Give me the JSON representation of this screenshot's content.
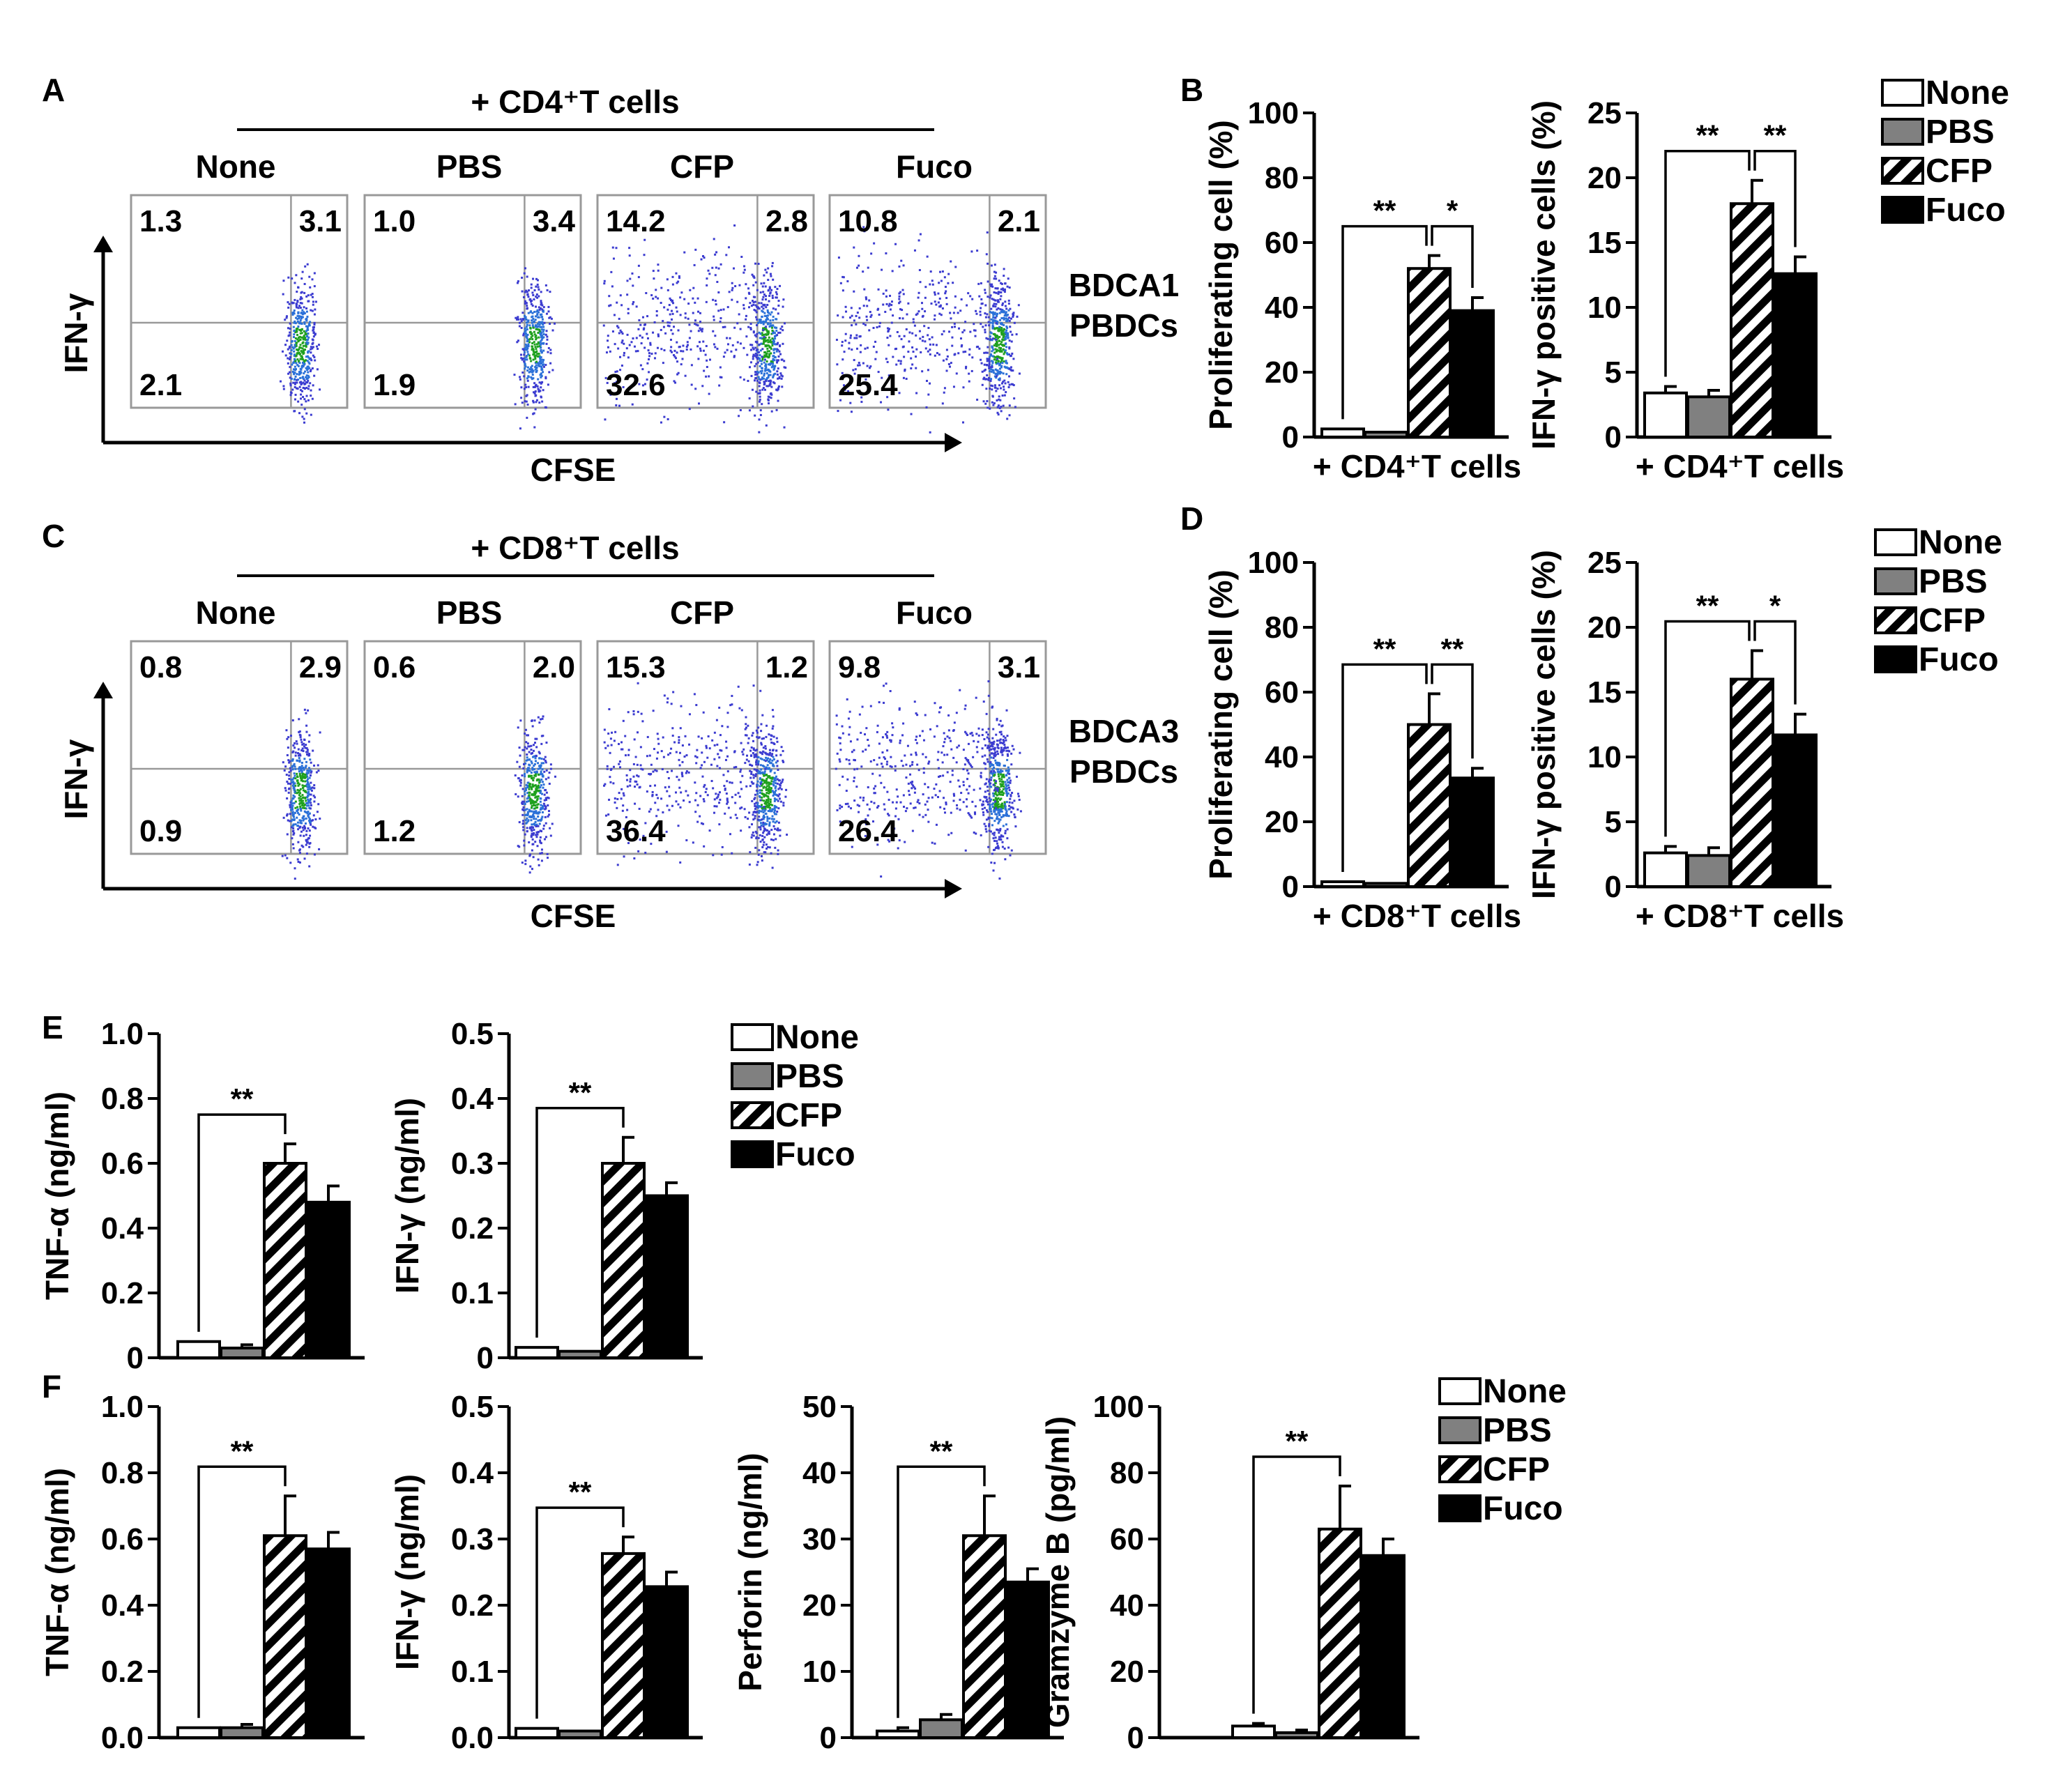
{
  "groups": [
    "None",
    "PBS",
    "CFP",
    "Fuco"
  ],
  "colors": {
    "None": "#ffffff",
    "PBS": "#808080",
    "Fuco": "#000000",
    "stroke": "#000000",
    "hatch": "#000000"
  },
  "flow": [
    {
      "panel": "A",
      "header": "+ CD4⁺T cells",
      "side": "BDCA1\nPBDCs",
      "xlabel": "CFSE",
      "ylabel": "IFN-γ",
      "plots": [
        {
          "title": "None",
          "tl": "1.3",
          "tr": "3.1",
          "bl": "2.1"
        },
        {
          "title": "PBS",
          "tl": "1.0",
          "tr": "3.4",
          "bl": "1.9"
        },
        {
          "title": "CFP",
          "tl": "14.2",
          "tr": "2.8",
          "bl": "32.6"
        },
        {
          "title": "Fuco",
          "tl": "10.8",
          "tr": "2.1",
          "bl": "25.4"
        }
      ]
    },
    {
      "panel": "C",
      "header": "+ CD8⁺T cells",
      "side": "BDCA3\nPBDCs",
      "xlabel": "CFSE",
      "ylabel": "IFN-γ",
      "plots": [
        {
          "title": "None",
          "tl": "0.8",
          "tr": "2.9",
          "bl": "0.9"
        },
        {
          "title": "PBS",
          "tl": "0.6",
          "tr": "2.0",
          "bl": "1.2"
        },
        {
          "title": "CFP",
          "tl": "15.3",
          "tr": "1.2",
          "bl": "36.4"
        },
        {
          "title": "Fuco",
          "tl": "9.8",
          "tr": "3.1",
          "bl": "26.4"
        }
      ]
    }
  ],
  "chart_data": [
    {
      "panel": "B",
      "type": "bar",
      "ylabel": "Proliferating cell (%)",
      "xlabel": "+ CD4⁺T cells",
      "ylim": [
        0,
        100
      ],
      "ticks": [
        "0",
        "20",
        "40",
        "60",
        "80",
        "100"
      ],
      "values": [
        2.5,
        1.5,
        52,
        39
      ],
      "errors": [
        0,
        0,
        4,
        4
      ],
      "sig": [
        {
          "from": 0,
          "to": 2,
          "label": "**"
        },
        {
          "from": 2,
          "to": 3,
          "label": "*"
        }
      ]
    },
    {
      "panel": "",
      "type": "bar",
      "ylabel": "IFN-γ positive cells (%)",
      "xlabel": "+ CD4⁺T cells",
      "ylim": [
        0,
        25
      ],
      "ticks": [
        "0",
        "5",
        "10",
        "15",
        "20",
        "25"
      ],
      "values": [
        3.4,
        3.1,
        18,
        12.6
      ],
      "errors": [
        0.5,
        0.5,
        1.8,
        1.3
      ],
      "sig": [
        {
          "from": 0,
          "to": 2,
          "label": "**"
        },
        {
          "from": 2,
          "to": 3,
          "label": "**"
        }
      ]
    },
    {
      "panel": "D",
      "type": "bar",
      "ylabel": "Proliferating cell (%)",
      "xlabel": "+ CD8⁺T cells",
      "ylim": [
        0,
        100
      ],
      "ticks": [
        "0",
        "20",
        "40",
        "60",
        "80",
        "100"
      ],
      "values": [
        1.5,
        1,
        50,
        33.5
      ],
      "errors": [
        0,
        0,
        9.5,
        3
      ],
      "sig": [
        {
          "from": 0,
          "to": 2,
          "label": "**"
        },
        {
          "from": 2,
          "to": 3,
          "label": "**"
        }
      ]
    },
    {
      "panel": "",
      "type": "bar",
      "ylabel": "IFN-γ positive cells (%)",
      "xlabel": "+ CD8⁺T cells",
      "ylim": [
        0,
        25
      ],
      "ticks": [
        "0",
        "5",
        "10",
        "15",
        "20",
        "25"
      ],
      "values": [
        2.6,
        2.4,
        16,
        11.7
      ],
      "errors": [
        0.5,
        0.6,
        2.2,
        1.6
      ],
      "sig": [
        {
          "from": 0,
          "to": 2,
          "label": "**"
        },
        {
          "from": 2,
          "to": 3,
          "label": "*"
        }
      ]
    },
    {
      "panel": "E",
      "type": "bar",
      "ylabel": "TNF-α (ng/ml)",
      "xlabel": "",
      "ylim": [
        0,
        1.0
      ],
      "ticks": [
        "0",
        "0.2",
        "0.4",
        "0.6",
        "0.8",
        "1.0"
      ],
      "values": [
        0.05,
        0.03,
        0.6,
        0.48
      ],
      "errors": [
        0,
        0.01,
        0.06,
        0.05
      ],
      "sig": [
        {
          "from": 0,
          "to": 2,
          "label": "**"
        }
      ]
    },
    {
      "panel": "",
      "type": "bar",
      "ylabel": "IFN-γ (ng/ml)",
      "xlabel": "",
      "ylim": [
        0,
        0.5
      ],
      "ticks": [
        "0",
        "0.1",
        "0.2",
        "0.3",
        "0.4",
        "0.5"
      ],
      "values": [
        0.016,
        0.01,
        0.3,
        0.25
      ],
      "errors": [
        0,
        0,
        0.04,
        0.02
      ],
      "sig": [
        {
          "from": 0,
          "to": 2,
          "label": "**"
        }
      ]
    },
    {
      "panel": "F",
      "type": "bar",
      "ylabel": "TNF-α (ng/ml)",
      "xlabel": "",
      "ylim": [
        0,
        1.0
      ],
      "ticks": [
        "0.0",
        "0.2",
        "0.4",
        "0.6",
        "0.8",
        "1.0"
      ],
      "values": [
        0.03,
        0.03,
        0.61,
        0.57
      ],
      "errors": [
        0,
        0.01,
        0.12,
        0.05
      ],
      "sig": [
        {
          "from": 0,
          "to": 2,
          "label": "**"
        }
      ]
    },
    {
      "panel": "",
      "type": "bar",
      "ylabel": "IFN-γ (ng/ml)",
      "xlabel": "",
      "ylim": [
        0,
        0.5
      ],
      "ticks": [
        "0.0",
        "0.1",
        "0.2",
        "0.3",
        "0.4",
        "0.5"
      ],
      "values": [
        0.014,
        0.01,
        0.278,
        0.228
      ],
      "errors": [
        0,
        0,
        0.025,
        0.022
      ],
      "sig": [
        {
          "from": 0,
          "to": 2,
          "label": "**"
        }
      ]
    },
    {
      "panel": "",
      "type": "bar",
      "ylabel": "Perforin (ng/ml)",
      "xlabel": "",
      "ylim": [
        0,
        50
      ],
      "ticks": [
        "0",
        "10",
        "20",
        "30",
        "40",
        "50"
      ],
      "values": [
        1,
        2.7,
        30.5,
        23.5
      ],
      "errors": [
        0.5,
        0.8,
        6,
        2
      ],
      "sig": [
        {
          "from": 0,
          "to": 2,
          "label": "**"
        }
      ]
    },
    {
      "panel": "",
      "type": "bar",
      "ylabel": "Gramzyme B (pg/ml)",
      "xlabel": "",
      "ylim": [
        0,
        100
      ],
      "ticks": [
        "0",
        "20",
        "40",
        "60",
        "80",
        "100"
      ],
      "values": [
        3.5,
        1.5,
        63,
        55
      ],
      "errors": [
        0.8,
        0.8,
        13,
        5
      ],
      "sig": [
        {
          "from": 0,
          "to": 2,
          "label": "**"
        }
      ]
    }
  ],
  "legends": [
    {
      "items": [
        "None",
        "PBS",
        "CFP",
        "Fuco"
      ]
    },
    {
      "items": [
        "None",
        "PBS",
        "CFP",
        "Fuco"
      ]
    },
    {
      "items": [
        "None",
        "PBS",
        "CFP",
        "Fuco"
      ]
    },
    {
      "items": [
        "None",
        "PBS",
        "CFP",
        "Fuco"
      ]
    }
  ]
}
